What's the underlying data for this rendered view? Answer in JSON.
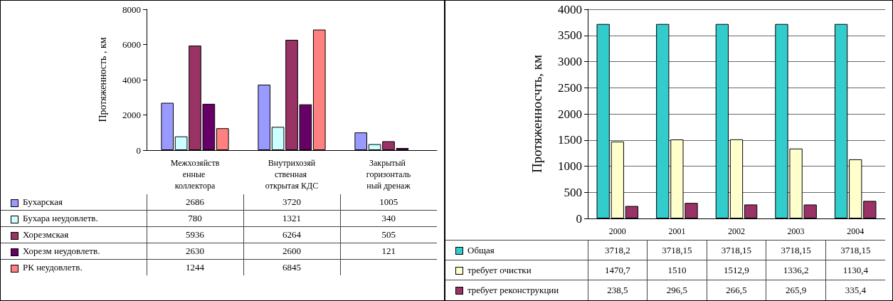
{
  "chart_data": [
    {
      "type": "bar",
      "ylabel": "Протяженность , км",
      "categories": [
        "Межхозяйственные коллектора",
        "Внутрихозяйственная открытая КДС",
        "Закрытый горизонтальный дренаж"
      ],
      "series": [
        {
          "name": "Бухарская",
          "color": "#9999ff",
          "values": [
            2686,
            3720,
            1005
          ]
        },
        {
          "name": "Бухара неудовлетв.",
          "color": "#ccffff",
          "values": [
            780,
            1321,
            340
          ]
        },
        {
          "name": "Хорезмская",
          "color": "#993366",
          "values": [
            5936,
            6264,
            505
          ]
        },
        {
          "name": "Хорезм неудовлетв.",
          "color": "#660066",
          "values": [
            2630,
            2600,
            121
          ]
        },
        {
          "name": "РК неудовлетв.",
          "color": "#ff8080",
          "values": [
            1244,
            6845,
            null
          ]
        }
      ],
      "ylim": [
        0,
        8000
      ],
      "yticks": [
        0,
        2000,
        4000,
        6000,
        8000
      ],
      "grid": false,
      "legend": "bottom",
      "data_labels": true
    },
    {
      "type": "bar",
      "ylabel": "Протяженносчть, км",
      "categories": [
        "2000",
        "2001",
        "2002",
        "2003",
        "2004"
      ],
      "series": [
        {
          "name": "Общая",
          "color": "#33cccc",
          "values": [
            3718.2,
            3718.15,
            3718.15,
            3718.15,
            3718.15
          ],
          "value_labels": [
            "3718,2",
            "3718,15",
            "3718,15",
            "3718,15",
            "3718,15"
          ]
        },
        {
          "name": "требует очистки",
          "color": "#ffffcc",
          "values": [
            1470.7,
            1510,
            1512.9,
            1336.2,
            1130.4
          ],
          "value_labels": [
            "1470,7",
            "1510",
            "1512,9",
            "1336,2",
            "1130,4"
          ]
        },
        {
          "name": "требует реконструкции",
          "color": "#993366",
          "values": [
            238.5,
            296.5,
            266.5,
            265.9,
            335.4
          ],
          "value_labels": [
            "238,5",
            "296,5",
            "266,5",
            "265,9",
            "335,4"
          ]
        }
      ],
      "ylim": [
        0,
        4000
      ],
      "yticks": [
        0,
        500,
        1000,
        1500,
        2000,
        2500,
        3000,
        3500,
        4000
      ],
      "grid": "y",
      "legend": "bottom"
    }
  ]
}
